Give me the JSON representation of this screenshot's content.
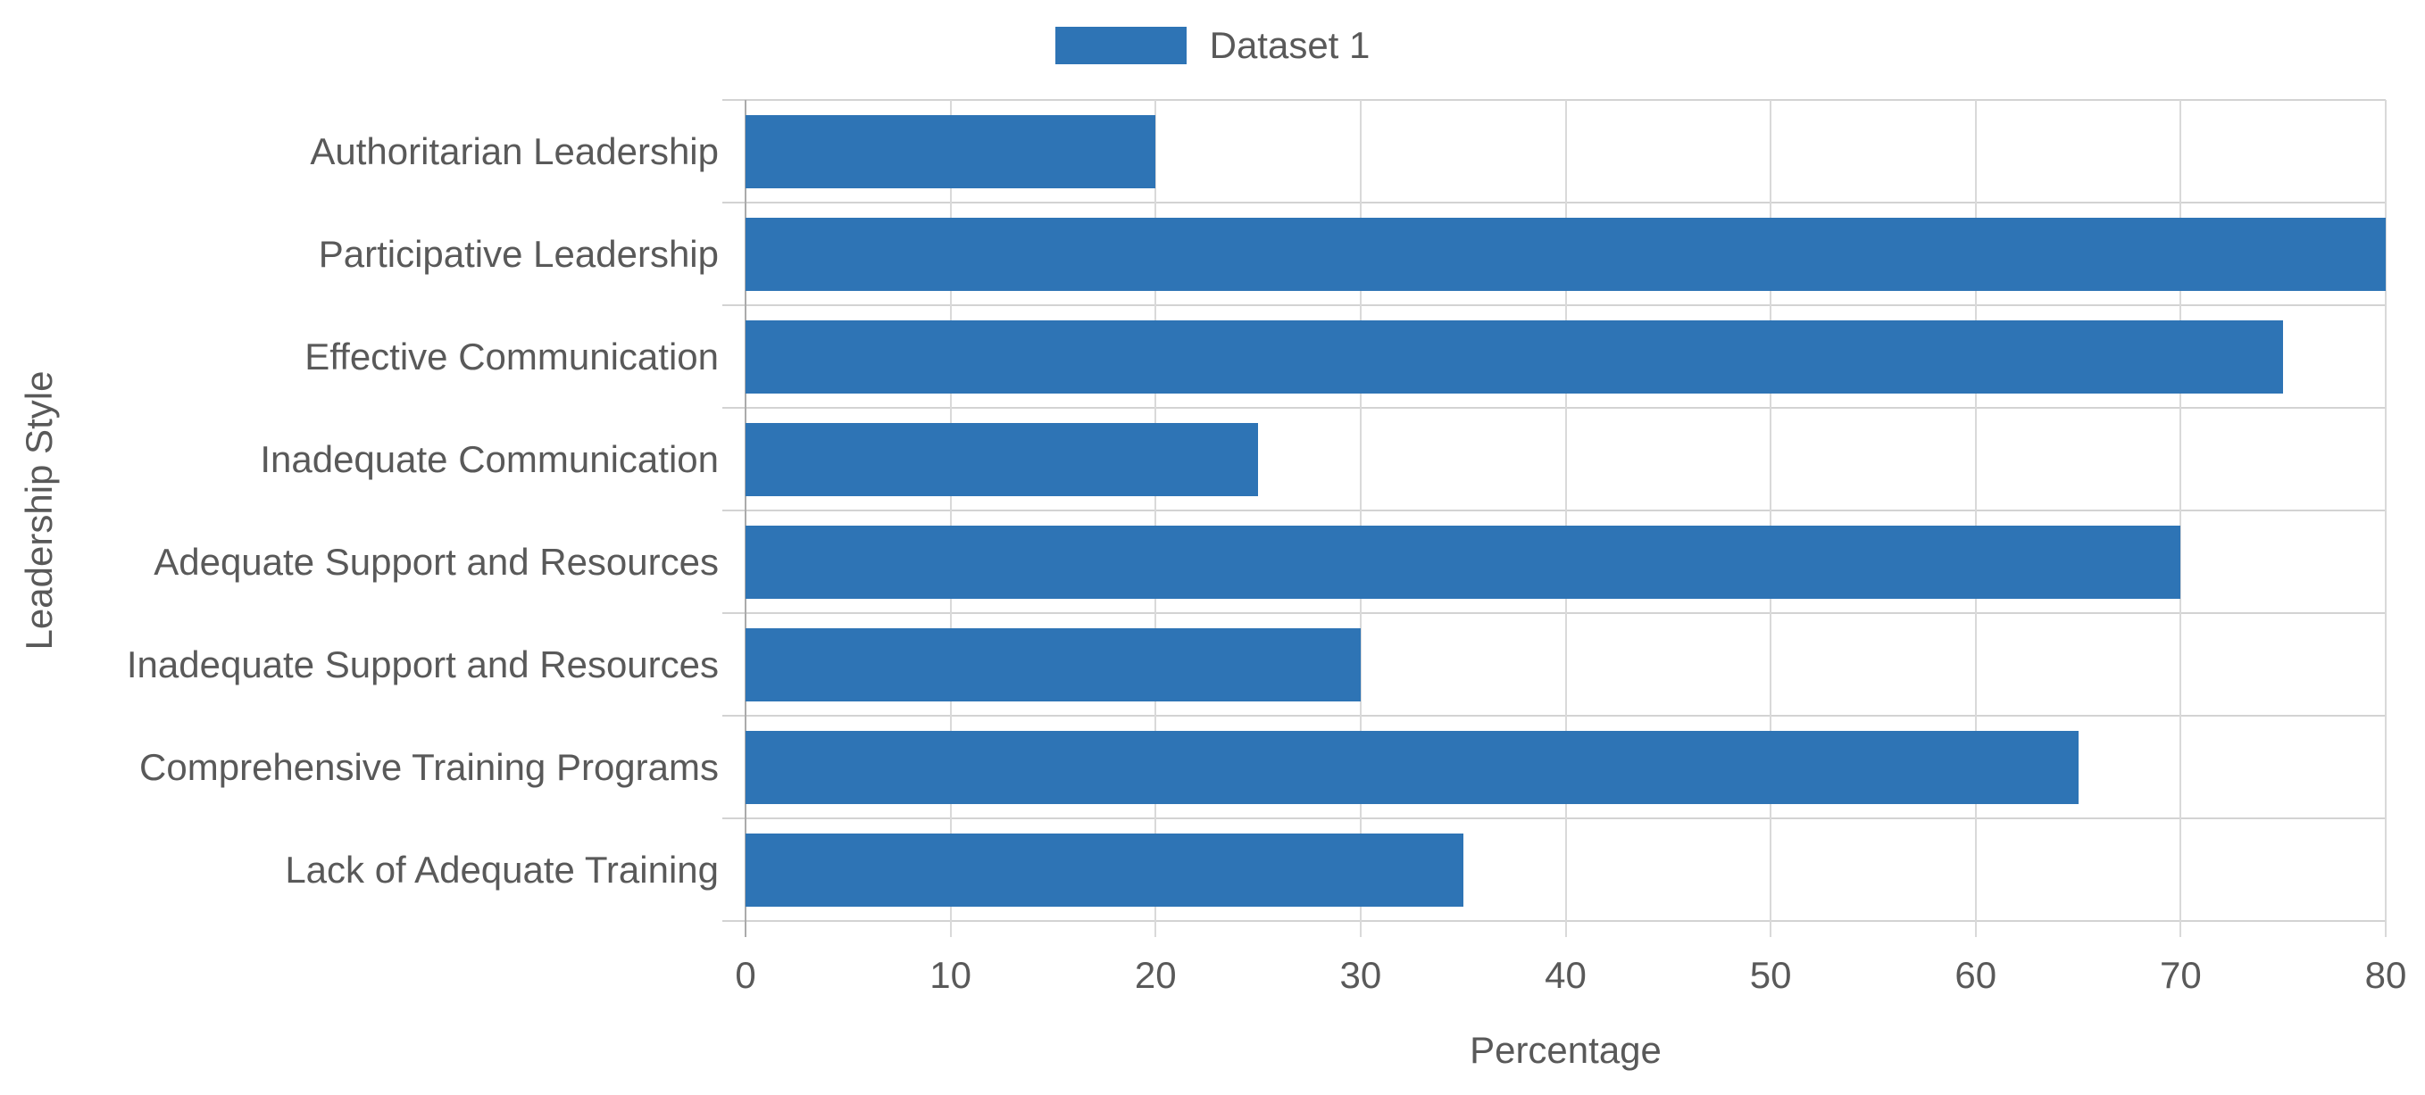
{
  "chart_data": {
    "type": "bar",
    "orientation": "horizontal",
    "categories": [
      "Authoritarian Leadership",
      "Participative Leadership",
      "Effective Communication",
      "Inadequate Communication",
      "Adequate Support and Resources",
      "Inadequate Support and Resources",
      "Comprehensive Training Programs",
      "Lack of Adequate Training"
    ],
    "series": [
      {
        "name": "Dataset 1",
        "values": [
          20,
          80,
          75,
          25,
          70,
          30,
          65,
          35
        ]
      }
    ],
    "xlabel": "Percentage",
    "ylabel": "Leadership Style",
    "xlim": [
      0,
      80
    ],
    "xticks": [
      0,
      10,
      20,
      30,
      40,
      50,
      60,
      70,
      80
    ],
    "grid": true,
    "legend_position": "top-center",
    "bar_color": "#2e74b5",
    "text_color": "#595959",
    "grid_color": "#d9d9d9",
    "zero_line_color": "#ababab"
  }
}
